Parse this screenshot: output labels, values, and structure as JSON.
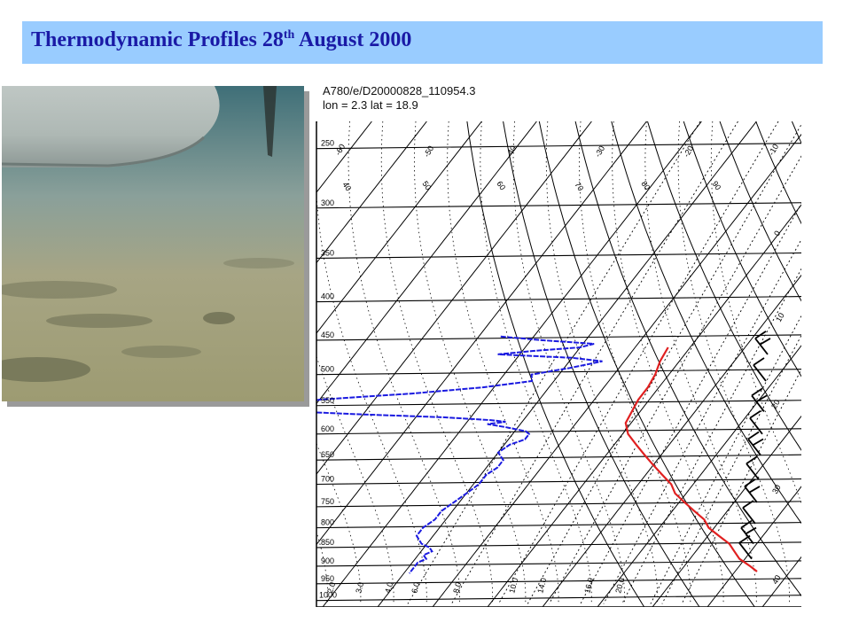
{
  "title": {
    "main": "Thermodynamic Profiles 28",
    "sup": "th",
    "tail": " August 2000"
  },
  "photo": {
    "icon": "aerial-photo-aircraft-wing-over-desert"
  },
  "chart_data": {
    "type": "line",
    "header": {
      "line1": "A780/e/D20000828_110954.3",
      "line2": "lon =   2.3 lat = 18.9"
    },
    "pressure_ticks": [
      "250",
      "300",
      "350",
      "400",
      "450",
      "500",
      "550",
      "600",
      "650",
      "700",
      "750",
      "800",
      "850",
      "900",
      "950",
      "1000"
    ],
    "temperature_labels": [
      "-60",
      "-50",
      "-40",
      "-30",
      "-20",
      "-10",
      "0",
      "10",
      "20",
      "30",
      "40"
    ],
    "mixing_ratio_labels": [
      "2.0",
      "3.0",
      "4.0",
      "6.0",
      "8.0",
      "10.0",
      "14.0",
      "16.0",
      "20.0"
    ],
    "theta_labels": [
      "40",
      "50",
      "60",
      "70",
      "80",
      "90"
    ],
    "series": [
      {
        "kind": "temperature",
        "color": "#e02020",
        "points": [
          [
            460,
            -14
          ],
          [
            480,
            -13.5
          ],
          [
            500,
            -12.5
          ],
          [
            520,
            -12
          ],
          [
            540,
            -12
          ],
          [
            560,
            -11.5
          ],
          [
            580,
            -11
          ],
          [
            600,
            -9
          ],
          [
            620,
            -6
          ],
          [
            640,
            -3
          ],
          [
            660,
            0
          ],
          [
            680,
            3
          ],
          [
            700,
            6
          ],
          [
            720,
            8
          ],
          [
            740,
            11
          ],
          [
            760,
            14
          ],
          [
            780,
            17
          ],
          [
            800,
            19
          ],
          [
            820,
            22
          ],
          [
            840,
            25
          ],
          [
            860,
            27
          ],
          [
            880,
            29
          ],
          [
            900,
            32
          ],
          [
            915,
            34
          ]
        ]
      },
      {
        "kind": "dewpoint",
        "color": "#1a1ae0",
        "points": [
          [
            445,
            -46
          ],
          [
            450,
            -38
          ],
          [
            455,
            -28
          ],
          [
            460,
            -30
          ],
          [
            465,
            -38
          ],
          [
            470,
            -44
          ],
          [
            475,
            -30
          ],
          [
            480,
            -24
          ],
          [
            490,
            -29
          ],
          [
            500,
            -35
          ],
          [
            510,
            -34
          ],
          [
            520,
            -42
          ],
          [
            530,
            -54
          ],
          [
            540,
            -70
          ],
          [
            550,
            -75
          ],
          [
            560,
            -73
          ],
          [
            565,
            -60
          ],
          [
            570,
            -45
          ],
          [
            575,
            -36
          ],
          [
            578,
            -33
          ],
          [
            582,
            -36
          ],
          [
            588,
            -32
          ],
          [
            595,
            -28
          ],
          [
            600,
            -27
          ],
          [
            610,
            -27
          ],
          [
            620,
            -29
          ],
          [
            635,
            -30
          ],
          [
            650,
            -28
          ],
          [
            665,
            -28
          ],
          [
            680,
            -29
          ],
          [
            700,
            -29
          ],
          [
            720,
            -30
          ],
          [
            740,
            -31
          ],
          [
            760,
            -32
          ],
          [
            780,
            -32
          ],
          [
            800,
            -33
          ],
          [
            820,
            -33
          ],
          [
            830,
            -32
          ],
          [
            840,
            -31
          ],
          [
            850,
            -29
          ],
          [
            860,
            -28
          ],
          [
            870,
            -29
          ],
          [
            880,
            -28
          ],
          [
            890,
            -29
          ],
          [
            900,
            -29
          ],
          [
            910,
            -29
          ],
          [
            920,
            -29
          ]
        ]
      }
    ],
    "wind_barbs_present": true
  }
}
